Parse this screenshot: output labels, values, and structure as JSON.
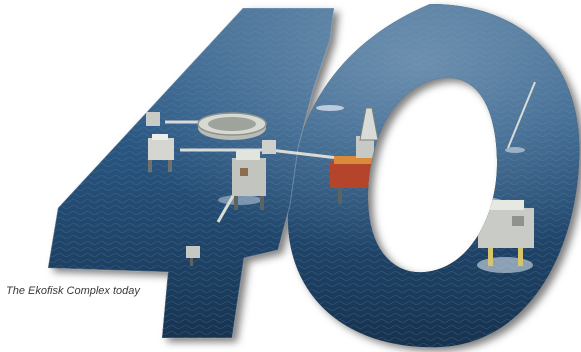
{
  "caption": "The Ekofisk Complex today",
  "image": {
    "subject": "offshore-oil-platform-complex",
    "shape": "number-40-cutout"
  },
  "colors": {
    "sea_dark": "#1e3a5c",
    "sea_mid": "#2f5a82",
    "sea_light": "#7f9db8",
    "steel": "#c9ccc6",
    "accent_red": "#b4452a",
    "accent_orange": "#d98a3a"
  }
}
